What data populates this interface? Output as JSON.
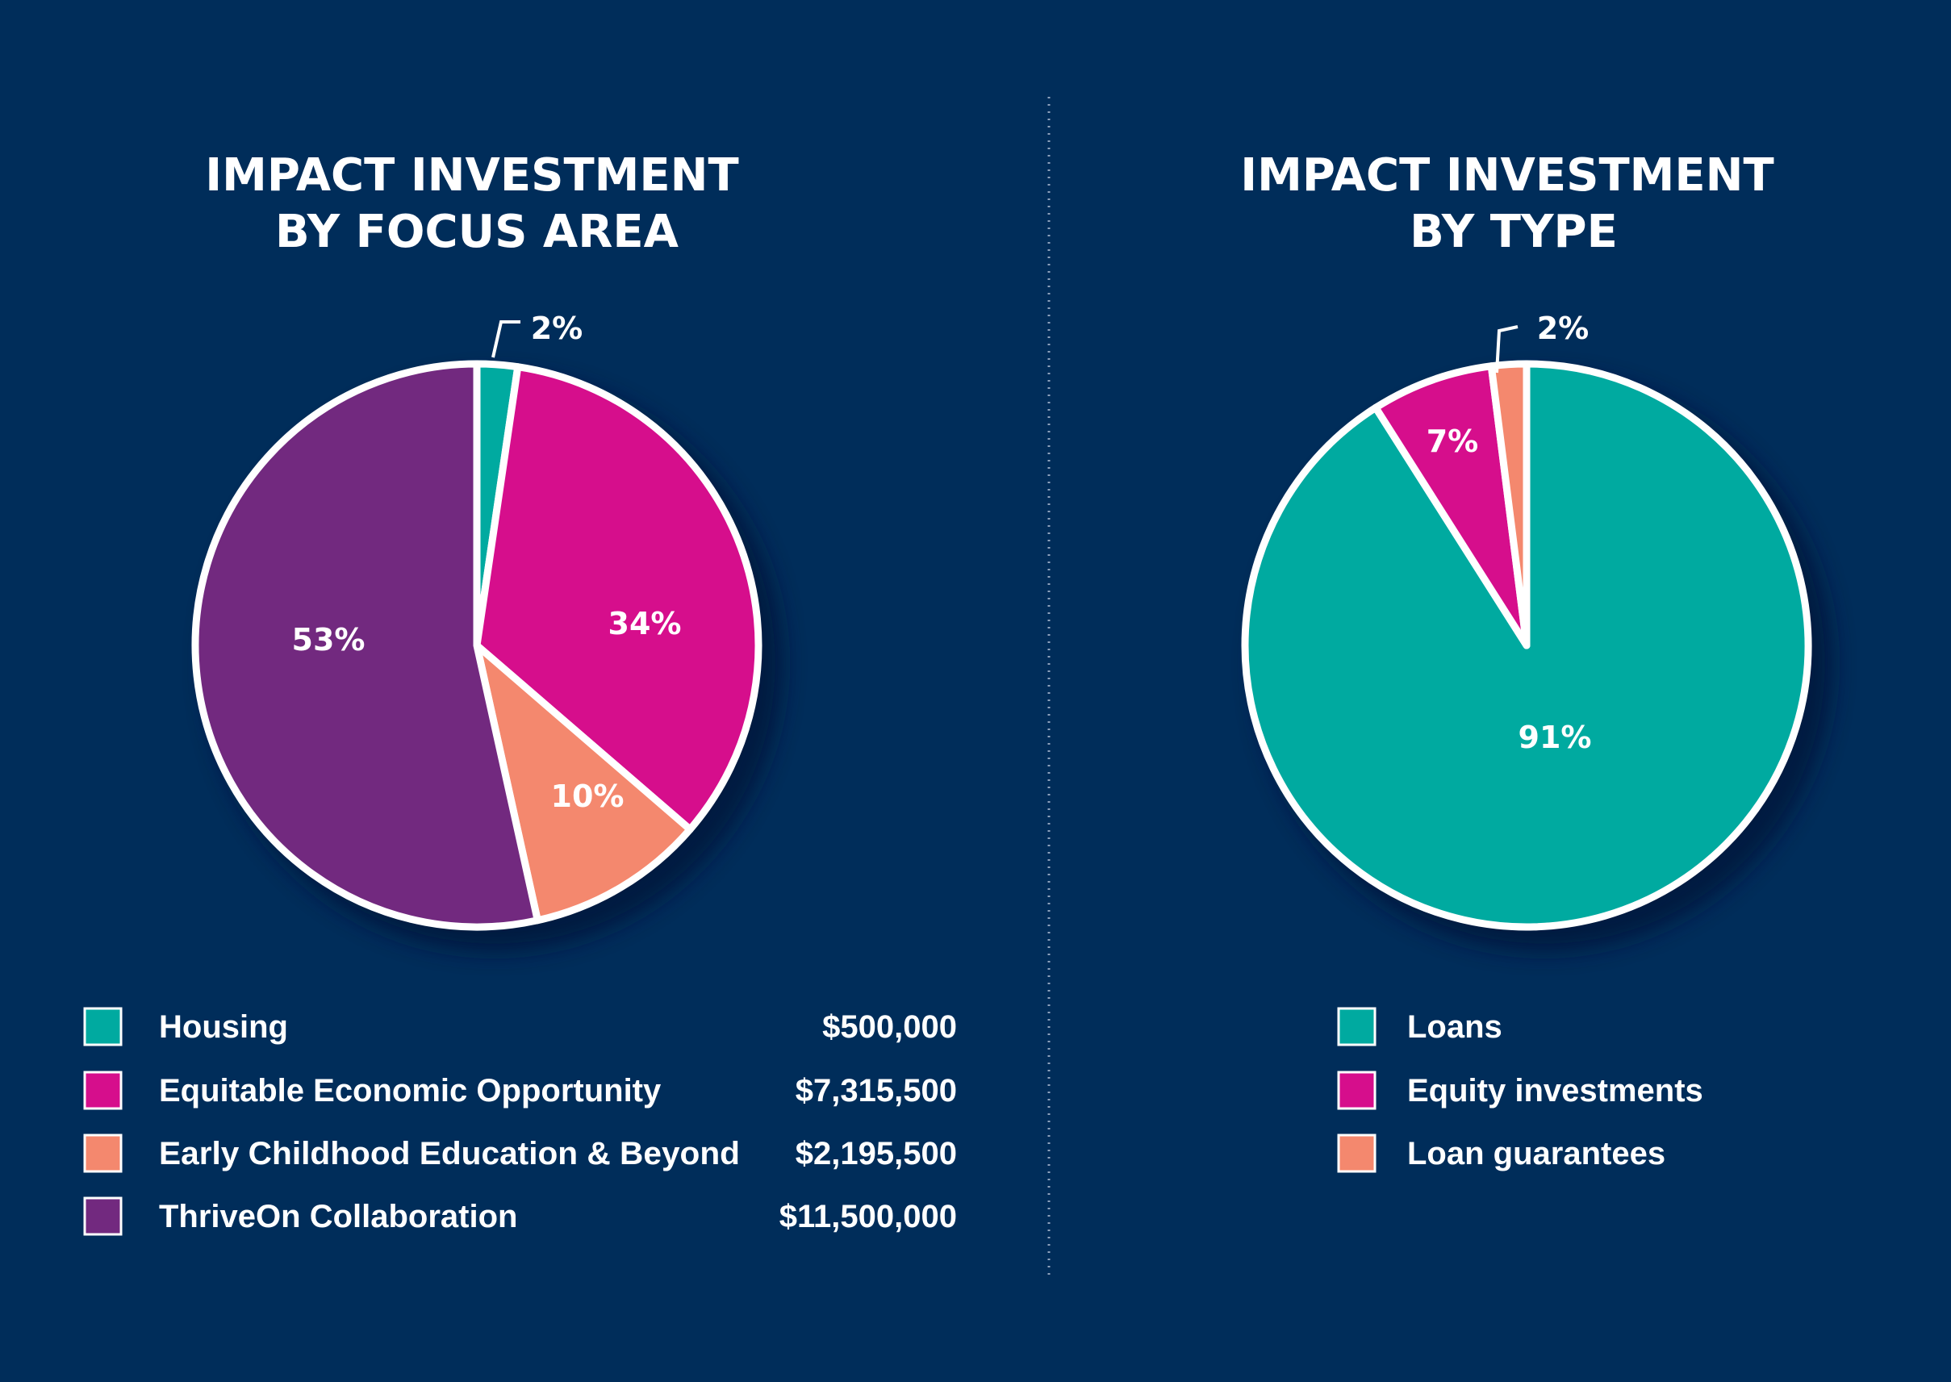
{
  "colors": {
    "background": "#002d5a",
    "teal": "#00aaa0",
    "magenta": "#d60e8c",
    "salmon": "#f4886e",
    "purple": "#72297f",
    "outline": "#ffffff"
  },
  "chart_data": [
    {
      "type": "pie",
      "title_line1": "IMPACT INVESTMENT",
      "title_line2": "BY FOCUS AREA",
      "slices": [
        {
          "label": "Housing",
          "amount": 500000,
          "amount_label": "$500,000",
          "percent_label": "2%",
          "color": "#00aaa0"
        },
        {
          "label": "Equitable Economic Opportunity",
          "amount": 7315500,
          "amount_label": "$7,315,500",
          "percent_label": "34%",
          "color": "#d60e8c"
        },
        {
          "label": "Early Childhood Education & Beyond",
          "amount": 2195500,
          "amount_label": "$2,195,500",
          "percent_label": "10%",
          "color": "#f4886e"
        },
        {
          "label": "ThriveOn Collaboration",
          "amount": 11500000,
          "amount_label": "$11,500,000",
          "percent_label": "53%",
          "color": "#72297f"
        }
      ],
      "legend_placement": "bottom"
    },
    {
      "type": "pie",
      "title_line1": "IMPACT INVESTMENT",
      "title_line2": "BY TYPE",
      "slices": [
        {
          "label": "Loans",
          "value": 91,
          "percent_label": "91%",
          "color": "#00aaa0"
        },
        {
          "label": "Equity investments",
          "value": 7,
          "percent_label": "7%",
          "color": "#d60e8c"
        },
        {
          "label": "Loan guarantees",
          "value": 2,
          "percent_label": "2%",
          "color": "#f4886e"
        }
      ],
      "legend_placement": "bottom"
    }
  ]
}
